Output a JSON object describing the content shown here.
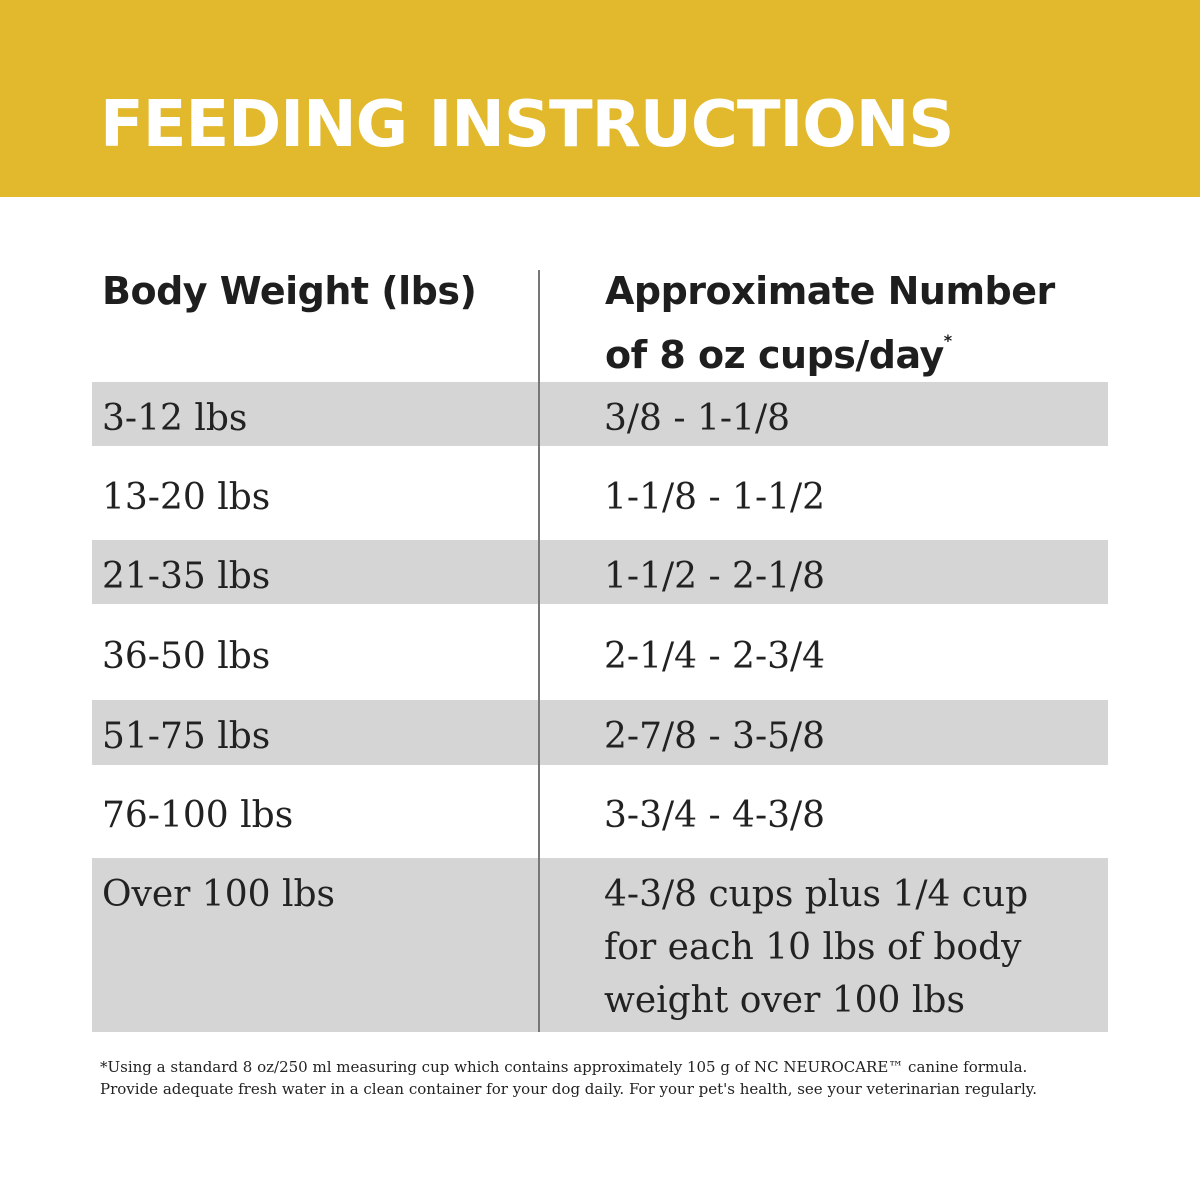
{
  "header": {
    "title": "FEEDING INSTRUCTIONS"
  },
  "table": {
    "columns": [
      "Body Weight (lbs)",
      "Approximate Number of 8 oz cups/day"
    ],
    "column_note": "*",
    "rows": [
      [
        "3-12 lbs",
        "3/8 - 1-1/8"
      ],
      [
        "13-20 lbs",
        "1-1/8 - 1-1/2"
      ],
      [
        "21-35 lbs",
        "1-1/2 - 2-1/8"
      ],
      [
        "36-50 lbs",
        "2-1/4 - 2-3/4"
      ],
      [
        "51-75 lbs",
        "2-7/8 - 3-5/8"
      ],
      [
        "76-100 lbs",
        "3-3/4 - 4-3/8"
      ],
      [
        "Over 100 lbs",
        "4-3/8 cups plus 1/4 cup for each 10 lbs of body weight over 100 lbs"
      ]
    ]
  },
  "footnote": [
    "*Using a standard 8 oz/250 ml measuring cup which contains approximately 105 g of NC NEUROCARE™ canine formula.",
    "Provide adequate fresh water in a clean container for your dog daily. For your pet's health, see your veterinarian regularly."
  ]
}
